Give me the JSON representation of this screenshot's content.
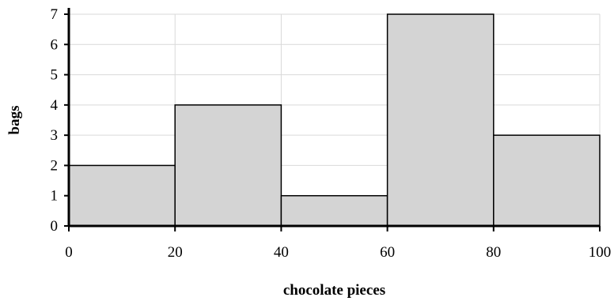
{
  "chart_data": {
    "type": "bar",
    "bins": [
      {
        "start": 0,
        "end": 20,
        "value": 2
      },
      {
        "start": 20,
        "end": 40,
        "value": 4
      },
      {
        "start": 40,
        "end": 60,
        "value": 1
      },
      {
        "start": 60,
        "end": 80,
        "value": 7
      },
      {
        "start": 80,
        "end": 100,
        "value": 3
      }
    ],
    "x_ticks": [
      "0",
      "20",
      "40",
      "60",
      "80",
      "100"
    ],
    "y_ticks": [
      "0",
      "1",
      "2",
      "3",
      "4",
      "5",
      "6",
      "7"
    ],
    "xlabel": "chocolate pieces",
    "ylabel": "bags",
    "xlim": [
      0,
      100
    ],
    "ylim": [
      0,
      7
    ],
    "grid": true,
    "legend": "none",
    "colors": {
      "bar_fill": "#d4d4d4",
      "bar_stroke": "#000000",
      "grid": "#d9d9d9"
    }
  }
}
